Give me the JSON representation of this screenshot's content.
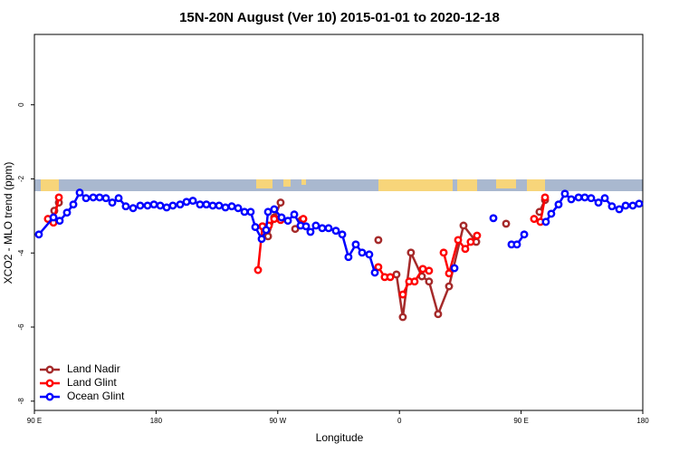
{
  "chart_data": {
    "type": "line",
    "title": "15N-20N August (Ver 10)   2015-01-01 to 2020-12-18",
    "x_label": "Longitude",
    "y_label": "XCO2 - MLO trend (ppm)",
    "xlim": [
      90,
      540
    ],
    "xticks": [
      {
        "value": 90,
        "label": "90 E"
      },
      180,
      {
        "value": 270,
        "label": "90 W"
      },
      {
        "value": 360,
        "label": "0"
      },
      {
        "value": 450,
        "label": "90 E"
      },
      {
        "value": 540,
        "label": "180"
      }
    ],
    "ylim": [
      -8.25,
      1.9
    ],
    "yticks": [
      0,
      -2,
      -4,
      -6,
      -8
    ],
    "grid": false,
    "legend": "bottomleft",
    "series": [
      {
        "name": "Land Nadir",
        "color": "#a52a2a",
        "x": [
          104.7,
          108.1,
          180,
          258.7,
          262.8,
          267.4,
          272.1,
          278,
          282.9,
          287.6,
          320,
          344.4,
          350,
          357.8,
          362.5,
          368.5,
          376.6,
          381.9,
          388.6,
          396.7,
          407.4,
          416.8,
          430,
          438.9,
          450,
          463.6,
          467.7
        ],
        "values": [
          -2.86,
          -2.64,
          null,
          -3.28,
          -3.55,
          -3.04,
          -2.64,
          null,
          -3.35,
          -3.11,
          null,
          -3.65,
          null,
          -4.58,
          -5.73,
          -3.99,
          -4.63,
          -4.77,
          -5.65,
          -4.9,
          -3.26,
          -3.7,
          null,
          -3.21,
          null,
          -2.89,
          -2.57
        ]
      },
      {
        "name": "Land Glint",
        "color": "#ff0000",
        "x": [
          100.0,
          104.1,
          108.1,
          180,
          255.4,
          258.7,
          263.4,
          267.4,
          272.1,
          280,
          288.9,
          320,
          344.4,
          349.1,
          353.2,
          358,
          362.5,
          367.2,
          371.2,
          377.3,
          381.9,
          387,
          392.7,
          396.7,
          403.4,
          408.7,
          412.7,
          417.4,
          440,
          459.6,
          464.3,
          467.7
        ],
        "values": [
          -3.08,
          -3.18,
          -2.5,
          null,
          -4.46,
          -3.28,
          -3.26,
          -3.08,
          -3.11,
          null,
          -3.08,
          null,
          -4.38,
          -4.65,
          -4.65,
          null,
          -5.12,
          -4.77,
          -4.77,
          -4.43,
          -4.48,
          null,
          -3.99,
          -4.55,
          -3.65,
          -3.89,
          -3.7,
          -3.53,
          null,
          -3.08,
          -3.16,
          -2.5
        ]
      },
      {
        "name": "Ocean Glint",
        "color": "#0000ff",
        "x": [
          93.3,
          104.1,
          108.7,
          114.1,
          118.8,
          123.5,
          128.2,
          133.5,
          138.2,
          142.9,
          147.6,
          152.3,
          157.6,
          163.0,
          168.3,
          173.7,
          178.4,
          183.1,
          187.8,
          192.4,
          197.8,
          202.5,
          207.2,
          212.5,
          217.2,
          221.9,
          226.6,
          231.3,
          236.0,
          240.7,
          245.4,
          250.0,
          253.4,
          258.1,
          261.4,
          262.8,
          267.4,
          272.8,
          277.5,
          282.2,
          286.9,
          290.9,
          294.2,
          298.2,
          302.9,
          307.6,
          313.0,
          317.7,
          322.3,
          327.7,
          332.4,
          337.7,
          341.8,
          370,
          400.7,
          415,
          429.5,
          436,
          442.9,
          446.9,
          452.3,
          460,
          468.3,
          472.3,
          477.7,
          482.4,
          487.1,
          492.5,
          497.1,
          501.8,
          507.2,
          511.9,
          517.2,
          522.6,
          527.3,
          532.6,
          537.3
        ],
        "values": [
          -3.5,
          -3.04,
          -3.13,
          -2.91,
          -2.69,
          -2.37,
          -2.52,
          -2.5,
          -2.5,
          -2.52,
          -2.64,
          -2.52,
          -2.74,
          -2.79,
          -2.72,
          -2.72,
          -2.69,
          -2.72,
          -2.77,
          -2.72,
          -2.69,
          -2.62,
          -2.59,
          -2.69,
          -2.69,
          -2.72,
          -2.72,
          -2.77,
          -2.74,
          -2.79,
          -2.89,
          -2.89,
          -3.3,
          -3.62,
          -3.38,
          -2.89,
          -2.82,
          -3.04,
          -3.13,
          -2.96,
          -3.26,
          -3.28,
          -3.43,
          -3.26,
          -3.33,
          -3.33,
          -3.4,
          -3.5,
          -4.11,
          -3.77,
          -3.99,
          -4.04,
          -4.53,
          null,
          -4.41,
          null,
          -3.06,
          null,
          -3.77,
          -3.77,
          -3.5,
          null,
          -3.16,
          -2.94,
          -2.69,
          -2.4,
          -2.55,
          -2.5,
          -2.5,
          -2.52,
          -2.64,
          -2.52,
          -2.74,
          -2.82,
          -2.72,
          -2.72,
          -2.67
        ]
      }
    ]
  }
}
